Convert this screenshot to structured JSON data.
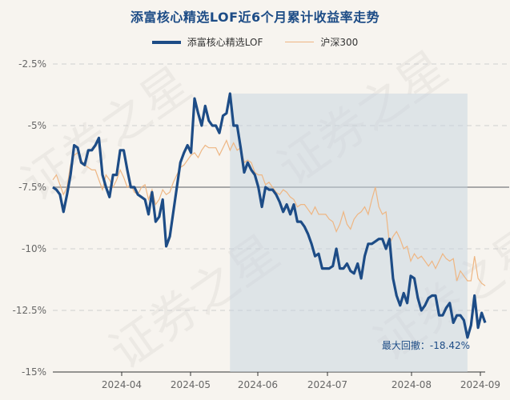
{
  "chart_data": {
    "type": "line",
    "title": "添富核心精选LOF近6个月累计收益率走势",
    "legend": [
      {
        "name": "添富核心精选LOF",
        "color": "#1d4c86"
      },
      {
        "name": "沪深300",
        "color": "#eeb683"
      }
    ],
    "y_ticks": [
      "-2.5%",
      "-5%",
      "-7.5%",
      "-10%",
      "-12.5%",
      "-15%"
    ],
    "ylim": [
      -15,
      -2.5
    ],
    "x_ticks": [
      "2024-04",
      "2024-05",
      "2024-06",
      "2024-07",
      "2024-08",
      "2024-09"
    ],
    "annotation": "最大回撤：-18.42%",
    "watermark": "证券之星",
    "series": [
      {
        "name": "添富核心精选LOF",
        "values": [
          -7.5,
          -7.6,
          -7.8,
          -8.5,
          -7.8,
          -7.0,
          -5.8,
          -5.9,
          -6.5,
          -6.6,
          -6.0,
          -6.0,
          -5.8,
          -5.5,
          -7.0,
          -7.5,
          -7.9,
          -7.0,
          -7.0,
          -6.0,
          -6.0,
          -6.8,
          -7.5,
          -7.5,
          -7.8,
          -7.9,
          -8.0,
          -8.6,
          -7.7,
          -8.9,
          -8.7,
          -8.0,
          -9.9,
          -9.5,
          -8.5,
          -7.5,
          -6.5,
          -6.1,
          -5.8,
          -6.1,
          -3.9,
          -4.5,
          -5.0,
          -4.2,
          -4.8,
          -5.0,
          -5.0,
          -5.3,
          -4.6,
          -4.5,
          -3.7,
          -5.0,
          -5.0,
          -5.9,
          -6.9,
          -6.5,
          -6.8,
          -7.0,
          -7.5,
          -8.3,
          -7.5,
          -7.6,
          -7.6,
          -7.8,
          -8.1,
          -8.5,
          -8.2,
          -8.6,
          -8.2,
          -8.9,
          -8.9,
          -9.1,
          -9.4,
          -9.8,
          -10.3,
          -10.2,
          -10.8,
          -10.8,
          -10.8,
          -10.7,
          -10.0,
          -10.8,
          -10.8,
          -10.6,
          -10.9,
          -11.0,
          -10.6,
          -11.2,
          -10.3,
          -9.8,
          -9.8,
          -9.7,
          -9.6,
          -9.6,
          -10.0,
          -9.6,
          -11.2,
          -11.9,
          -12.3,
          -11.8,
          -12.2,
          -11.1,
          -11.2,
          -12.0,
          -12.5,
          -12.3,
          -12.0,
          -11.9,
          -11.9,
          -12.7,
          -12.7,
          -12.4,
          -12.2,
          -13.0,
          -12.7,
          -12.7,
          -12.9,
          -13.6,
          -13.1,
          -11.9,
          -13.2,
          -12.6,
          -13.0
        ]
      },
      {
        "name": "沪深300",
        "values": [
          -7.2,
          -7.0,
          -7.4,
          -7.8,
          -7.5,
          -6.6,
          -6.2,
          -6.1,
          -6.4,
          -6.6,
          -6.7,
          -6.8,
          -6.8,
          -7.2,
          -7.6,
          -7.0,
          -7.2,
          -7.5,
          -7.2,
          -6.8,
          -7.1,
          -7.5,
          -7.4,
          -7.7,
          -7.8,
          -7.5,
          -7.4,
          -8.0,
          -7.6,
          -8.2,
          -8.0,
          -7.6,
          -7.8,
          -7.7,
          -7.3,
          -7.0,
          -6.7,
          -6.6,
          -6.4,
          -6.2,
          -6.1,
          -6.3,
          -6.0,
          -5.8,
          -5.9,
          -5.9,
          -5.9,
          -6.2,
          -5.9,
          -5.6,
          -6.0,
          -5.7,
          -6.0,
          -5.9,
          -6.5,
          -6.4,
          -6.5,
          -6.9,
          -7.0,
          -7.0,
          -7.4,
          -7.3,
          -7.5,
          -7.7,
          -7.8,
          -7.6,
          -7.7,
          -7.9,
          -8.0,
          -8.3,
          -8.2,
          -8.2,
          -8.4,
          -8.6,
          -8.3,
          -8.6,
          -8.6,
          -8.6,
          -8.8,
          -8.9,
          -9.3,
          -9.0,
          -8.5,
          -9.0,
          -9.2,
          -8.8,
          -8.6,
          -8.5,
          -8.3,
          -8.6,
          -8.0,
          -7.5,
          -8.3,
          -8.6,
          -8.5,
          -9.8,
          -9.5,
          -9.3,
          -9.6,
          -10.0,
          -9.9,
          -10.5,
          -10.2,
          -10.4,
          -10.3,
          -10.5,
          -10.7,
          -10.5,
          -10.8,
          -10.5,
          -10.2,
          -10.4,
          -10.5,
          -10.4,
          -11.3,
          -10.9,
          -11.1,
          -11.3,
          -11.3,
          -10.3,
          -11.2,
          -11.4,
          -11.5
        ]
      }
    ]
  }
}
